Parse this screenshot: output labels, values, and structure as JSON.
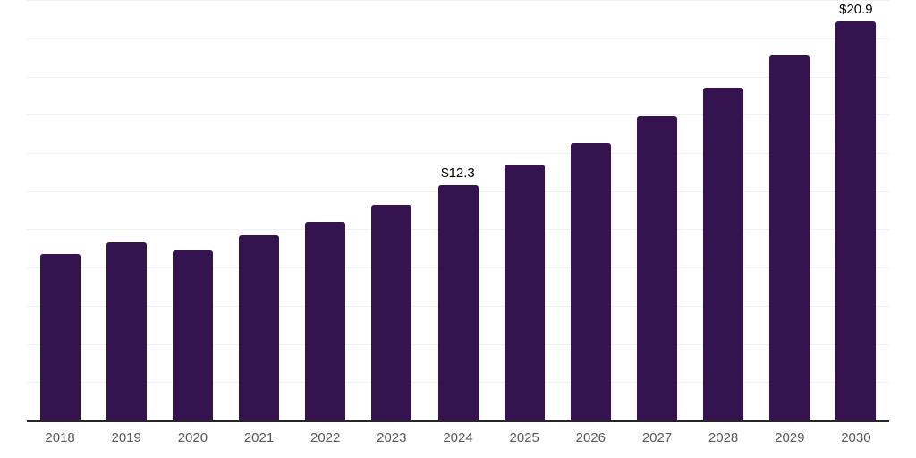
{
  "page": {
    "background": "#ffffff"
  },
  "chart_data": {
    "type": "bar",
    "title": "",
    "xlabel": "",
    "ylabel": "",
    "categories": [
      "2018",
      "2019",
      "2020",
      "2021",
      "2022",
      "2023",
      "2024",
      "2025",
      "2026",
      "2027",
      "2028",
      "2029",
      "2030"
    ],
    "values": [
      8.7,
      9.3,
      8.9,
      9.7,
      10.4,
      11.3,
      12.3,
      13.4,
      14.5,
      15.9,
      17.4,
      19.1,
      20.9
    ],
    "data_labels": [
      {
        "category": "2024",
        "text": "$12.3"
      },
      {
        "category": "2030",
        "text": "$20.9"
      }
    ],
    "ylim": [
      0,
      22
    ],
    "gridline_step": 2,
    "grid": "horizontal",
    "legend": "none",
    "y_axis_labels_visible": false,
    "colors": {
      "bar": "#35134e",
      "axis_line": "#262626",
      "gridline": "#f1f1f1",
      "tick_label": "#575757",
      "data_label": "#000000"
    }
  }
}
